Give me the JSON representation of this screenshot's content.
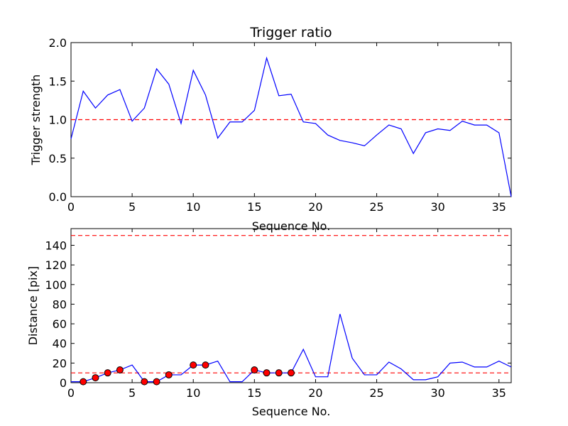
{
  "chart_data": [
    {
      "type": "line",
      "title": "Trigger ratio",
      "xlabel": "Sequence No.",
      "ylabel": "Trigger strength",
      "xlim": [
        0,
        36
      ],
      "ylim": [
        0,
        2.0
      ],
      "xticks": [
        0,
        5,
        10,
        15,
        20,
        25,
        30,
        35
      ],
      "xtick_labels": [
        "0",
        "5",
        "10",
        "15",
        "20",
        "25",
        "30",
        "35"
      ],
      "yticks": [
        0,
        0.5,
        1.0,
        1.5,
        2.0
      ],
      "ytick_labels": [
        "0.0",
        "0.5",
        "1.0",
        "1.5",
        "2.0"
      ],
      "grid": false,
      "series": [
        {
          "name": "trigger strength",
          "color": "#0000ff",
          "x": [
            0,
            1,
            2,
            3,
            4,
            5,
            6,
            7,
            8,
            9,
            10,
            11,
            12,
            13,
            14,
            15,
            16,
            17,
            18,
            19,
            20,
            21,
            22,
            23,
            24,
            25,
            26,
            27,
            28,
            29,
            30,
            31,
            32,
            33,
            34,
            35,
            36
          ],
          "values": [
            0.75,
            1.37,
            1.15,
            1.32,
            1.39,
            0.98,
            1.15,
            1.66,
            1.46,
            0.95,
            1.64,
            1.32,
            0.76,
            0.97,
            0.97,
            1.12,
            1.8,
            1.31,
            1.33,
            0.97,
            0.95,
            0.8,
            0.73,
            0.7,
            0.66,
            0.8,
            0.93,
            0.88,
            0.56,
            0.83,
            0.88,
            0.86,
            0.98,
            0.93,
            0.93,
            0.83,
            0.0
          ]
        }
      ],
      "reference_lines": [
        {
          "y": 1.0,
          "color": "#ff0000",
          "style": "dashed"
        }
      ]
    },
    {
      "type": "line",
      "title": "",
      "xlabel": "Sequence No.",
      "ylabel": "Distance [pix]",
      "xlim": [
        0,
        36
      ],
      "ylim": [
        0,
        157
      ],
      "xticks": [
        0,
        5,
        10,
        15,
        20,
        25,
        30,
        35
      ],
      "xtick_labels": [
        "0",
        "5",
        "10",
        "15",
        "20",
        "25",
        "30",
        "35"
      ],
      "yticks": [
        0,
        20,
        40,
        60,
        80,
        100,
        120,
        140
      ],
      "ytick_labels": [
        "0",
        "20",
        "40",
        "60",
        "80",
        "100",
        "120",
        "140"
      ],
      "grid": false,
      "series": [
        {
          "name": "distance",
          "color": "#0000ff",
          "x": [
            0,
            1,
            2,
            3,
            4,
            5,
            6,
            7,
            8,
            9,
            10,
            11,
            12,
            13,
            14,
            15,
            16,
            17,
            18,
            19,
            20,
            21,
            22,
            23,
            24,
            25,
            26,
            27,
            28,
            29,
            30,
            31,
            32,
            33,
            34,
            35,
            36
          ],
          "values": [
            1,
            1,
            5,
            10,
            13,
            18,
            1,
            1,
            8,
            8,
            18,
            18,
            22,
            1,
            1,
            13,
            10,
            10,
            10,
            34,
            6,
            6,
            70,
            25,
            8,
            8,
            21,
            14,
            3,
            3,
            6,
            20,
            21,
            16,
            16,
            22,
            16
          ]
        }
      ],
      "markers": {
        "name": "flagged points",
        "color": "#ff0000",
        "x": [
          1,
          2,
          3,
          4,
          6,
          7,
          8,
          10,
          11,
          15,
          16,
          17,
          18
        ],
        "values": [
          1,
          5,
          10,
          13,
          1,
          1,
          8,
          18,
          18,
          13,
          10,
          10,
          10
        ]
      },
      "reference_lines": [
        {
          "y": 10,
          "color": "#ff0000",
          "style": "dashed"
        },
        {
          "y": 150,
          "color": "#ff0000",
          "style": "dashed"
        }
      ]
    }
  ]
}
